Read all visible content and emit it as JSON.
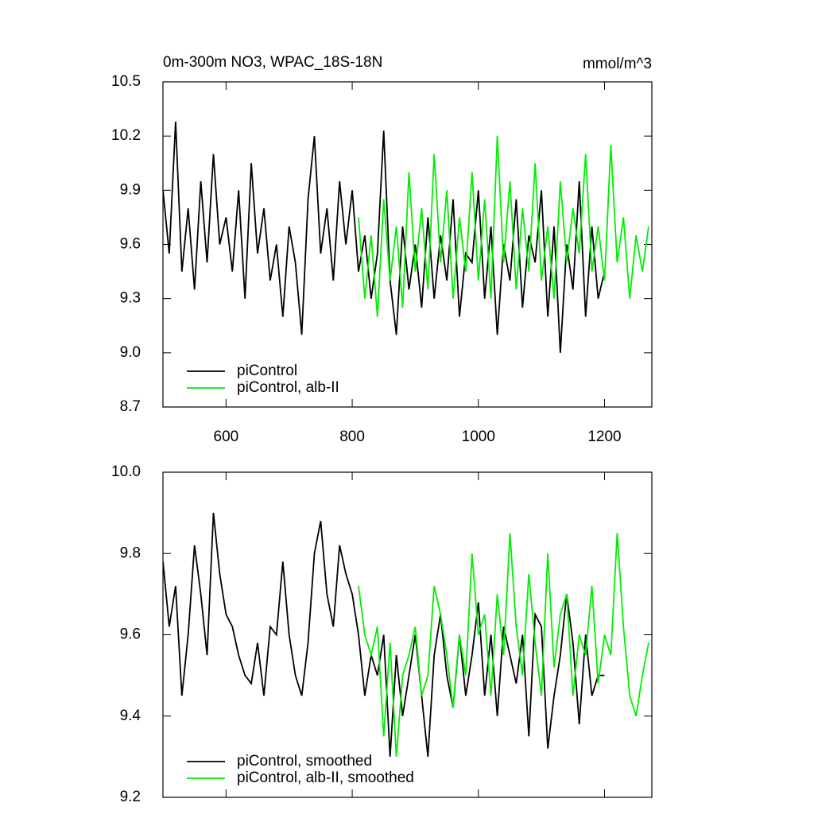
{
  "chart_data": [
    {
      "type": "line",
      "title": "0m-300m NO3, WPAC_18S-18N",
      "units": "mmol/m^3",
      "xlim": [
        500,
        1275
      ],
      "xticks": [
        600,
        800,
        1000,
        1200
      ],
      "xtick_labels": true,
      "ylim": [
        8.7,
        10.5
      ],
      "yticks": [
        8.7,
        {
          "value": 9,
          "label": "9.0"
        },
        9.3,
        9.6,
        9.9,
        10.2,
        10.5
      ],
      "legend": "lower-left",
      "series": [
        {
          "name": "piControl",
          "color": "#000000",
          "x": [
            500,
            510,
            520,
            530,
            540,
            550,
            560,
            570,
            580,
            590,
            600,
            610,
            620,
            630,
            640,
            650,
            660,
            670,
            680,
            690,
            700,
            710,
            720,
            730,
            740,
            750,
            760,
            770,
            780,
            790,
            800,
            810,
            820,
            830,
            840,
            850,
            860,
            870,
            880,
            890,
            900,
            910,
            920,
            930,
            940,
            950,
            960,
            970,
            980,
            990,
            1000,
            1010,
            1020,
            1030,
            1040,
            1050,
            1060,
            1070,
            1080,
            1090,
            1100,
            1110,
            1120,
            1130,
            1140,
            1150,
            1160,
            1170,
            1180,
            1190,
            1200
          ],
          "values": [
            9.9,
            9.55,
            10.28,
            9.45,
            9.8,
            9.35,
            9.95,
            9.5,
            10.1,
            9.6,
            9.75,
            9.45,
            9.9,
            9.3,
            10.05,
            9.55,
            9.8,
            9.4,
            9.6,
            9.2,
            9.7,
            9.5,
            9.1,
            9.85,
            10.2,
            9.55,
            9.8,
            9.4,
            9.95,
            9.6,
            9.9,
            9.45,
            9.65,
            9.3,
            9.55,
            10.23,
            9.4,
            9.1,
            9.7,
            9.35,
            9.6,
            9.25,
            9.75,
            9.3,
            9.65,
            9.4,
            9.85,
            9.2,
            9.55,
            9.5,
            9.9,
            9.3,
            9.7,
            9.1,
            9.6,
            9.4,
            9.85,
            9.25,
            9.65,
            9.5,
            9.9,
            9.2,
            9.7,
            9.0,
            9.6,
            9.35,
            9.95,
            9.2,
            9.7,
            9.3,
            9.45
          ]
        },
        {
          "name": "piControl, alb-II",
          "color": "#00ee00",
          "x": [
            810,
            820,
            830,
            840,
            850,
            860,
            870,
            880,
            890,
            900,
            910,
            920,
            930,
            940,
            950,
            960,
            970,
            980,
            990,
            1000,
            1010,
            1020,
            1030,
            1040,
            1050,
            1060,
            1070,
            1080,
            1090,
            1100,
            1110,
            1120,
            1130,
            1140,
            1150,
            1160,
            1170,
            1180,
            1190,
            1200,
            1210,
            1220,
            1230,
            1240,
            1250,
            1260,
            1270
          ],
          "values": [
            9.75,
            9.3,
            9.65,
            9.2,
            9.85,
            9.4,
            9.7,
            9.25,
            10.0,
            9.45,
            9.8,
            9.35,
            10.1,
            9.5,
            9.9,
            9.3,
            9.75,
            9.45,
            10.0,
            9.4,
            9.85,
            9.3,
            10.2,
            9.5,
            9.95,
            9.35,
            9.8,
            9.45,
            10.05,
            9.4,
            9.7,
            9.3,
            9.95,
            9.5,
            9.8,
            9.55,
            10.1,
            9.45,
            9.7,
            9.4,
            10.15,
            9.5,
            9.75,
            9.3,
            9.65,
            9.45,
            9.7
          ]
        }
      ]
    },
    {
      "type": "line",
      "xlim": [
        500,
        1275
      ],
      "xticks": [
        600,
        800,
        1000,
        1200
      ],
      "xtick_labels": false,
      "ylim": [
        9.2,
        10.0
      ],
      "yticks": [
        9.2,
        9.4,
        9.6,
        9.8,
        {
          "value": 10,
          "label": "10.0"
        }
      ],
      "legend": "lower-left",
      "series": [
        {
          "name": "piControl, smoothed",
          "color": "#000000",
          "x": [
            500,
            510,
            520,
            530,
            540,
            550,
            560,
            570,
            580,
            590,
            600,
            610,
            620,
            630,
            640,
            650,
            660,
            670,
            680,
            690,
            700,
            710,
            720,
            730,
            740,
            750,
            760,
            770,
            780,
            790,
            800,
            810,
            820,
            830,
            840,
            850,
            860,
            870,
            880,
            890,
            900,
            910,
            920,
            930,
            940,
            950,
            960,
            970,
            980,
            990,
            1000,
            1010,
            1020,
            1030,
            1040,
            1050,
            1060,
            1070,
            1080,
            1090,
            1100,
            1110,
            1120,
            1130,
            1140,
            1150,
            1160,
            1170,
            1180,
            1190,
            1200
          ],
          "values": [
            9.78,
            9.62,
            9.72,
            9.45,
            9.6,
            9.82,
            9.7,
            9.55,
            9.9,
            9.75,
            9.65,
            9.62,
            9.55,
            9.5,
            9.48,
            9.58,
            9.45,
            9.62,
            9.6,
            9.78,
            9.6,
            9.5,
            9.45,
            9.58,
            9.8,
            9.88,
            9.7,
            9.62,
            9.82,
            9.75,
            9.7,
            9.6,
            9.45,
            9.55,
            9.5,
            9.6,
            9.3,
            9.55,
            9.4,
            9.5,
            9.6,
            9.45,
            9.3,
            9.55,
            9.65,
            9.5,
            9.42,
            9.6,
            9.45,
            9.55,
            9.68,
            9.45,
            9.6,
            9.4,
            9.62,
            9.55,
            9.48,
            9.6,
            9.35,
            9.65,
            9.62,
            9.32,
            9.45,
            9.55,
            9.7,
            9.58,
            9.38,
            9.6,
            9.45,
            9.5,
            9.5
          ]
        },
        {
          "name": "piControl, alb-II, smoothed",
          "color": "#00ee00",
          "x": [
            810,
            820,
            830,
            840,
            850,
            860,
            870,
            880,
            890,
            900,
            910,
            920,
            930,
            940,
            950,
            960,
            970,
            980,
            990,
            1000,
            1010,
            1020,
            1030,
            1040,
            1050,
            1060,
            1070,
            1080,
            1090,
            1100,
            1110,
            1120,
            1130,
            1140,
            1150,
            1160,
            1170,
            1180,
            1190,
            1200,
            1210,
            1220,
            1230,
            1240,
            1250,
            1260,
            1270
          ],
          "values": [
            9.72,
            9.6,
            9.55,
            9.62,
            9.35,
            9.58,
            9.3,
            9.5,
            9.55,
            9.62,
            9.45,
            9.5,
            9.72,
            9.65,
            9.55,
            9.42,
            9.6,
            9.5,
            9.8,
            9.6,
            9.65,
            9.45,
            9.7,
            9.55,
            9.85,
            9.62,
            9.5,
            9.75,
            9.58,
            9.45,
            9.8,
            9.52,
            9.65,
            9.7,
            9.45,
            9.6,
            9.55,
            9.72,
            9.48,
            9.6,
            9.55,
            9.85,
            9.62,
            9.45,
            9.4,
            9.5,
            9.58
          ]
        }
      ]
    }
  ]
}
